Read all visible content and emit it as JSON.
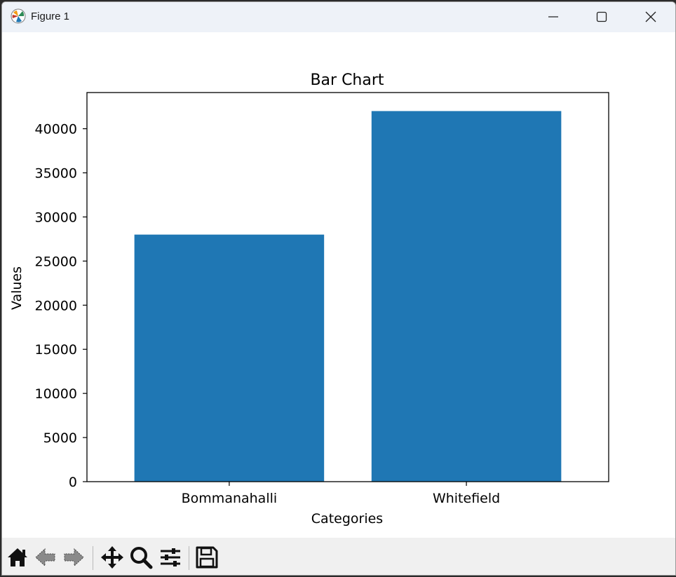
{
  "window": {
    "title": "Figure 1",
    "colors": {
      "titlebar_bg": "#eef2f8",
      "toolbar_bg": "#f0f0f0"
    },
    "controls": [
      {
        "name": "minimize",
        "icon": "minimize-icon"
      },
      {
        "name": "maximize",
        "icon": "maximize-icon"
      },
      {
        "name": "close",
        "icon": "close-icon"
      }
    ]
  },
  "toolbar": {
    "buttons": [
      {
        "name": "home",
        "icon": "home-icon"
      },
      {
        "name": "back",
        "icon": "back-arrow-icon"
      },
      {
        "name": "forward",
        "icon": "forward-arrow-icon"
      },
      {
        "name": "pan",
        "icon": "move-icon"
      },
      {
        "name": "zoom",
        "icon": "magnifier-icon"
      },
      {
        "name": "configure-subplots",
        "icon": "sliders-icon"
      },
      {
        "name": "save",
        "icon": "floppy-disk-icon"
      }
    ]
  },
  "chart_data": {
    "type": "bar",
    "title": "Bar Chart",
    "xlabel": "Categories",
    "ylabel": "Values",
    "categories": [
      "Bommanahalli",
      "Whitefield"
    ],
    "values": [
      28000,
      42000
    ],
    "ylim": [
      0,
      44100
    ],
    "yticks": [
      0,
      5000,
      10000,
      15000,
      20000,
      25000,
      30000,
      35000,
      40000
    ],
    "bar_color": "#1f77b4",
    "grid": false,
    "legend": "none"
  }
}
